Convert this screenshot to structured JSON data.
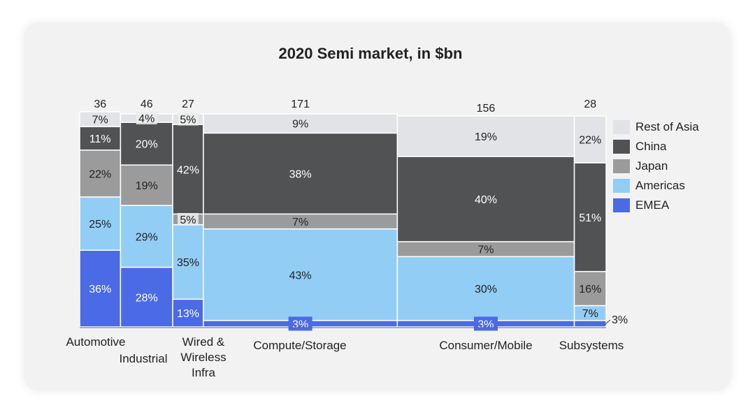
{
  "chart_data": {
    "type": "bar",
    "subtype": "marimekko",
    "title": "2020 Semi market, in $bn",
    "legend_position": "right",
    "categories": [
      "Automotive",
      "Industrial",
      "Wired & Wireless Infra",
      "Compute/Storage",
      "Consumer/Mobile",
      "Subsystems"
    ],
    "category_labels": [
      [
        "Automotive"
      ],
      [
        "Industrial"
      ],
      [
        "Wired &",
        "Wireless",
        "Infra"
      ],
      [
        "Compute/Storage"
      ],
      [
        "Consumer/Mobile"
      ],
      [
        "Subsystems"
      ]
    ],
    "totals": [
      36,
      46,
      27,
      171,
      156,
      28
    ],
    "series": [
      {
        "name": "EMEA",
        "color": "#4a6ae6",
        "values": [
          36,
          28,
          13,
          3,
          3,
          3
        ]
      },
      {
        "name": "Americas",
        "color": "#92cdf5",
        "values": [
          25,
          29,
          35,
          43,
          30,
          7
        ]
      },
      {
        "name": "Japan",
        "color": "#9b9b9b",
        "values": [
          22,
          19,
          5,
          7,
          7,
          16
        ]
      },
      {
        "name": "China",
        "color": "#505254",
        "values": [
          11,
          20,
          42,
          38,
          40,
          51
        ]
      },
      {
        "name": "Rest of Asia",
        "color": "#e1e3e6",
        "values": [
          7,
          4,
          5,
          9,
          19,
          22
        ]
      }
    ],
    "legend_order": [
      "Rest of Asia",
      "China",
      "Japan",
      "Americas",
      "EMEA"
    ]
  }
}
